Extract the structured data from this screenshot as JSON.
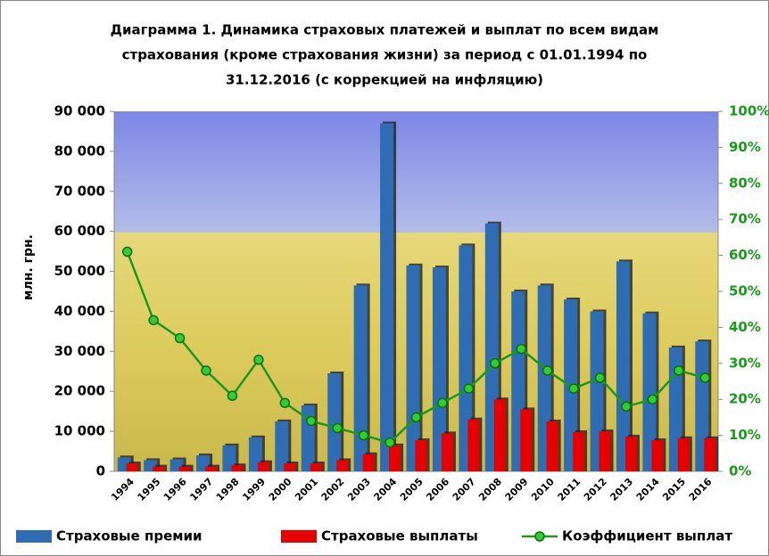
{
  "chart_data": {
    "type": "bar",
    "title": [
      "Диаграмма 1. Динамика страховых платежей и выплат по всем видам",
      "страхования (кроме страхования жизни) за период с  01.01.1994 по",
      "31.12.2016 (с коррекцией на инфляцию)"
    ],
    "ylabel": "млн. грн.",
    "categories": [
      "1994",
      "1995",
      "1996",
      "1997",
      "1998",
      "1999",
      "2000",
      "2001",
      "2002",
      "2003",
      "2004",
      "2005",
      "2006",
      "2007",
      "2008",
      "2009",
      "2010",
      "2011",
      "2012",
      "2013",
      "2014",
      "2015",
      "2016"
    ],
    "series": [
      {
        "name": "Страховые премии",
        "type": "bar",
        "color": "#2e6db4",
        "values": [
          3500,
          2800,
          3000,
          4000,
          6500,
          8500,
          12500,
          16500,
          24500,
          46500,
          87000,
          51500,
          51000,
          56500,
          62000,
          45000,
          46500,
          43000,
          40000,
          52500,
          39500,
          31000,
          32500
        ]
      },
      {
        "name": "Страховые выплаты",
        "type": "bar",
        "color": "#e80000",
        "values": [
          2000,
          1200,
          1200,
          1200,
          1500,
          2300,
          2000,
          2000,
          2800,
          4300,
          6500,
          7800,
          9500,
          13000,
          18000,
          15500,
          12500,
          9800,
          10000,
          8700,
          7800,
          8300,
          8300
        ]
      },
      {
        "name": "Коэффициент выплат",
        "type": "line",
        "axis": "y2",
        "color": "#1a9a1a",
        "values": [
          61,
          42,
          37,
          28,
          21,
          31,
          19,
          14,
          12,
          10,
          8,
          15,
          19,
          23,
          30,
          34,
          28,
          23,
          26,
          18,
          20,
          28,
          26
        ]
      }
    ],
    "ylim": [
      0,
      90000
    ],
    "yticks": [
      {
        "value": 0,
        "label": "0"
      },
      {
        "value": 10000,
        "label": "10 000"
      },
      {
        "value": 20000,
        "label": "20 000"
      },
      {
        "value": 30000,
        "label": "30 000"
      },
      {
        "value": 40000,
        "label": "40 000"
      },
      {
        "value": 50000,
        "label": "50 000"
      },
      {
        "value": 60000,
        "label": "60 000"
      },
      {
        "value": 70000,
        "label": "70 000"
      },
      {
        "value": 80000,
        "label": "80 000"
      },
      {
        "value": 90000,
        "label": "90 000"
      }
    ],
    "y2lim": [
      0,
      100
    ],
    "y2ticks": [
      {
        "value": 0,
        "label": "0%"
      },
      {
        "value": 10,
        "label": "10%"
      },
      {
        "value": 20,
        "label": "20%"
      },
      {
        "value": 30,
        "label": "30%"
      },
      {
        "value": 40,
        "label": "40%"
      },
      {
        "value": 50,
        "label": "50%"
      },
      {
        "value": 60,
        "label": "60%"
      },
      {
        "value": 70,
        "label": "70%"
      },
      {
        "value": 80,
        "label": "80%"
      },
      {
        "value": 90,
        "label": "90%"
      },
      {
        "value": 100,
        "label": "100%"
      }
    ]
  }
}
